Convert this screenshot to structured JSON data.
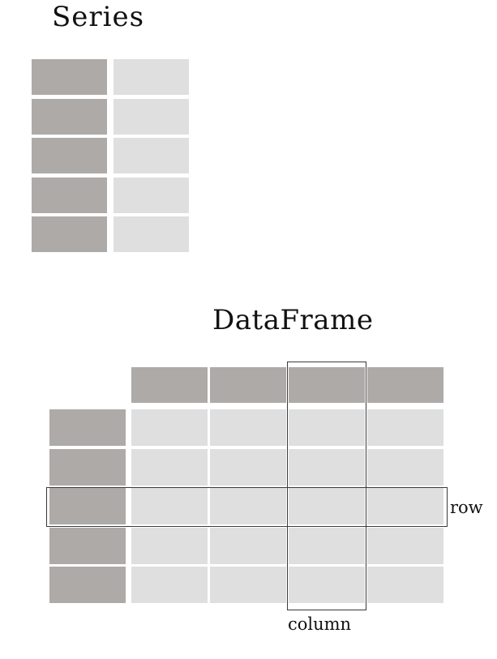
{
  "series": {
    "title": "Series",
    "rows": 5,
    "colors": {
      "index": "#aeaaa8",
      "values": "#e0dfdf"
    }
  },
  "dataframe": {
    "title": "DataFrame",
    "rows": 5,
    "columns": 4,
    "row_label": "row",
    "column_label": "column",
    "highlighted_row": 3,
    "highlighted_column": 3,
    "colors": {
      "header": "#aeaaa8",
      "index": "#aeaaa8",
      "values": "#e0dfdf",
      "outline": "#3a3a3a"
    }
  }
}
